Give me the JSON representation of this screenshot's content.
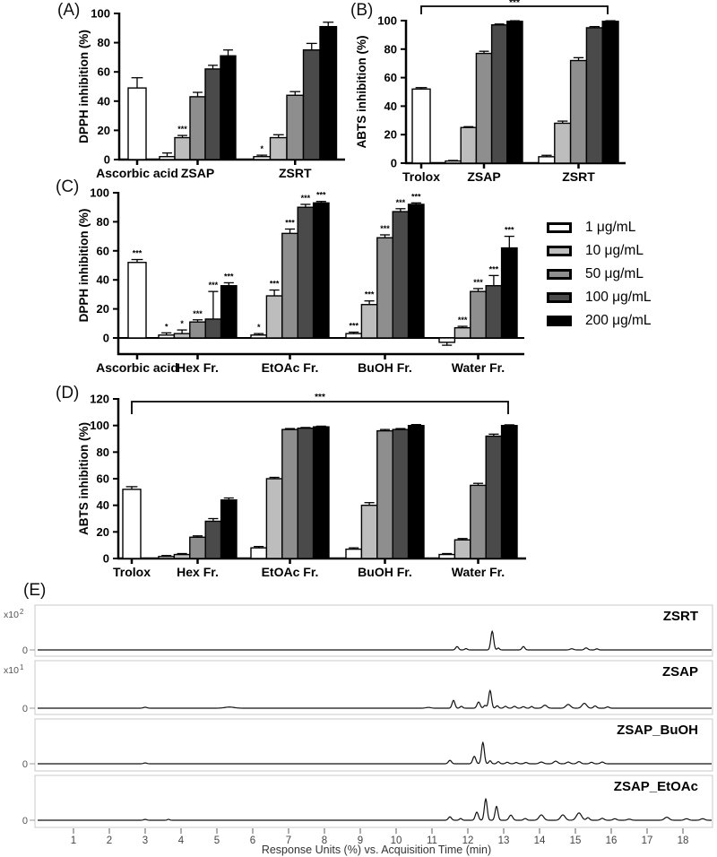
{
  "figure": {
    "background": "#ffffff"
  },
  "legend": {
    "items": [
      {
        "label": "1 μg/mL",
        "color": "#ffffff"
      },
      {
        "label": "10 μg/mL",
        "color": "#bdbdbd"
      },
      {
        "label": "50 μg/mL",
        "color": "#8e8e8e"
      },
      {
        "label": "100 μg/mL",
        "color": "#4a4a4a"
      },
      {
        "label": "200 μg/mL",
        "color": "#000000"
      }
    ]
  },
  "chart_data": [
    {
      "id": "A",
      "type": "bar",
      "panel_label": "(A)",
      "ylabel": "DPPH inhibition (%)",
      "ylim": [
        0,
        100
      ],
      "ytick_step": 20,
      "series_labels": [
        "1 μg/mL",
        "10 μg/mL",
        "50 μg/mL",
        "100 μg/mL",
        "200 μg/mL"
      ],
      "groups": [
        {
          "category": "Ascorbic acid",
          "values": [
            49
          ],
          "errors": [
            7
          ],
          "sig": [
            ""
          ]
        },
        {
          "category": "ZSAP",
          "values": [
            2,
            15,
            43,
            62,
            71
          ],
          "errors": [
            2.5,
            1.5,
            3,
            2.5,
            4
          ],
          "sig": [
            "",
            "***",
            "",
            "",
            ""
          ]
        },
        {
          "category": "ZSRT",
          "values": [
            2,
            15,
            44,
            75,
            91
          ],
          "errors": [
            1,
            2,
            2.5,
            4.5,
            3
          ],
          "sig": [
            "*",
            "",
            "",
            "",
            ""
          ]
        }
      ],
      "bracket": null
    },
    {
      "id": "B",
      "type": "bar",
      "panel_label": "(B)",
      "ylabel": "ABTS inhibition (%)",
      "ylim": [
        0,
        100
      ],
      "ytick_step": 20,
      "series_labels": [
        "1 μg/mL",
        "10 μg/mL",
        "50 μg/mL",
        "100 μg/mL",
        "200 μg/mL"
      ],
      "groups": [
        {
          "category": "Trolox",
          "values": [
            52
          ],
          "errors": [
            1
          ],
          "sig": [
            ""
          ]
        },
        {
          "category": "ZSAP",
          "values": [
            1.5,
            25,
            77,
            97,
            99.5
          ],
          "errors": [
            0.4,
            0.6,
            1.5,
            0.6,
            0.4
          ],
          "sig": [
            "",
            "",
            "",
            "",
            ""
          ]
        },
        {
          "category": "ZSRT",
          "values": [
            4.5,
            28,
            72,
            95,
            99.5
          ],
          "errors": [
            1,
            1.5,
            2,
            0.8,
            0.4
          ],
          "sig": [
            "",
            "",
            "",
            "",
            ""
          ]
        }
      ],
      "bracket": {
        "label": "***"
      }
    },
    {
      "id": "C",
      "type": "bar",
      "panel_label": "(C)",
      "ylabel": "DPPH inhibition (%)",
      "ylim": [
        0,
        100
      ],
      "ytick_step": 20,
      "series_labels": [
        "1 μg/mL",
        "10 μg/mL",
        "50 μg/mL",
        "100 μg/mL",
        "200 μg/mL"
      ],
      "groups": [
        {
          "category": "Ascorbic acid",
          "values": [
            52
          ],
          "errors": [
            2
          ],
          "sig": [
            "***"
          ]
        },
        {
          "category": "Hex Fr.",
          "values": [
            2,
            3,
            11,
            13,
            36
          ],
          "errors": [
            1.5,
            2.5,
            1.5,
            19,
            2
          ],
          "sig": [
            "*",
            "*",
            "***",
            "***",
            "***"
          ]
        },
        {
          "category": "EtOAc Fr.",
          "values": [
            2,
            29,
            72,
            90,
            93
          ],
          "errors": [
            1,
            4,
            3,
            2,
            1
          ],
          "sig": [
            "*",
            "***",
            "***",
            "***",
            "***"
          ]
        },
        {
          "category": "BuOH Fr.",
          "values": [
            3,
            23,
            69,
            87,
            92
          ],
          "errors": [
            1,
            2.5,
            2,
            2,
            1
          ],
          "sig": [
            "***",
            "***",
            "***",
            "***",
            "***"
          ]
        },
        {
          "category": "Water Fr.",
          "values": [
            -3,
            7,
            32,
            36,
            62
          ],
          "errors": [
            2,
            1,
            2,
            7,
            8
          ],
          "sig": [
            "",
            "***",
            "***",
            "***",
            "***"
          ]
        }
      ],
      "bracket": null
    },
    {
      "id": "D",
      "type": "bar",
      "panel_label": "(D)",
      "ylabel": "ABTS inhibition (%)",
      "ylim": [
        0,
        120
      ],
      "ytick_step": 20,
      "series_labels": [
        "1 μg/mL",
        "10 μg/mL",
        "50 μg/mL",
        "100 μg/mL",
        "200 μg/mL"
      ],
      "groups": [
        {
          "category": "Trolox",
          "values": [
            52
          ],
          "errors": [
            2
          ],
          "sig": [
            ""
          ]
        },
        {
          "category": "Hex Fr.",
          "values": [
            1.5,
            3,
            16,
            28,
            44
          ],
          "errors": [
            0.7,
            0.7,
            1,
            2,
            1.5
          ],
          "sig": [
            "",
            "",
            "",
            "",
            ""
          ]
        },
        {
          "category": "EtOAc Fr.",
          "values": [
            8,
            60,
            97,
            98,
            99
          ],
          "errors": [
            1,
            1,
            0.7,
            0.5,
            0.5
          ],
          "sig": [
            "",
            "",
            "",
            "",
            ""
          ]
        },
        {
          "category": "BuOH Fr.",
          "values": [
            7,
            40,
            96,
            97,
            100
          ],
          "errors": [
            1,
            2,
            1,
            0.7,
            0.7
          ],
          "sig": [
            "",
            "",
            "",
            "",
            ""
          ]
        },
        {
          "category": "Water Fr.",
          "values": [
            3,
            14,
            55,
            92,
            100
          ],
          "errors": [
            0.7,
            1,
            1.5,
            1.5,
            0.5
          ],
          "sig": [
            "",
            "",
            "",
            "",
            ""
          ]
        }
      ],
      "bracket": {
        "label": "***"
      }
    },
    {
      "id": "E",
      "type": "line",
      "panel_label": "(E)",
      "xlabel": "Response Units (%) vs. Acquisition Time (min)",
      "x_ticks": [
        1,
        2,
        3,
        4,
        5,
        6,
        7,
        8,
        9,
        10,
        11,
        12,
        13,
        14,
        15,
        16,
        17,
        18
      ],
      "x_range": [
        0,
        18.8
      ],
      "traces": [
        {
          "name": "ZSRT",
          "scale_label": "x10 2",
          "baseline_label": "0",
          "peaks": [
            [
              11.7,
              0.18,
              0.055
            ],
            [
              11.95,
              0.07,
              0.05
            ],
            [
              12.68,
              1.0,
              0.055
            ],
            [
              12.85,
              0.1,
              0.045
            ],
            [
              13.55,
              0.18,
              0.055
            ],
            [
              14.9,
              0.06,
              0.07
            ],
            [
              15.3,
              0.11,
              0.06
            ],
            [
              15.6,
              0.06,
              0.05
            ]
          ]
        },
        {
          "name": "ZSAP",
          "scale_label": "x10 1",
          "baseline_label": "0",
          "peaks": [
            [
              3.0,
              0.05,
              0.07
            ],
            [
              5.35,
              0.06,
              0.18
            ],
            [
              10.9,
              0.04,
              0.1
            ],
            [
              11.6,
              0.42,
              0.055
            ],
            [
              11.82,
              0.1,
              0.05
            ],
            [
              12.3,
              0.33,
              0.06
            ],
            [
              12.48,
              0.15,
              0.05
            ],
            [
              12.62,
              0.95,
              0.055
            ],
            [
              12.82,
              0.13,
              0.05
            ],
            [
              13.05,
              0.1,
              0.06
            ],
            [
              13.3,
              0.1,
              0.06
            ],
            [
              13.55,
              0.08,
              0.06
            ],
            [
              13.78,
              0.09,
              0.05
            ],
            [
              14.15,
              0.16,
              0.08
            ],
            [
              14.8,
              0.2,
              0.09
            ],
            [
              15.25,
              0.26,
              0.09
            ],
            [
              15.55,
              0.12,
              0.06
            ],
            [
              15.9,
              0.07,
              0.06
            ]
          ]
        },
        {
          "name": "ZSAP_BuOH",
          "scale_label": "",
          "baseline_label": "0",
          "peaks": [
            [
              3.0,
              0.04,
              0.06
            ],
            [
              11.5,
              0.16,
              0.06
            ],
            [
              12.18,
              0.35,
              0.06
            ],
            [
              12.42,
              1.0,
              0.055
            ],
            [
              12.62,
              0.14,
              0.05
            ],
            [
              12.85,
              0.1,
              0.05
            ],
            [
              13.1,
              0.07,
              0.06
            ],
            [
              13.35,
              0.06,
              0.06
            ],
            [
              13.62,
              0.06,
              0.06
            ],
            [
              14.05,
              0.08,
              0.08
            ],
            [
              14.45,
              0.12,
              0.08
            ],
            [
              14.8,
              0.08,
              0.07
            ],
            [
              15.1,
              0.1,
              0.07
            ],
            [
              15.45,
              0.07,
              0.06
            ],
            [
              15.75,
              0.08,
              0.07
            ]
          ]
        },
        {
          "name": "ZSAP_EtOAc",
          "scale_label": "",
          "baseline_label": "0",
          "peaks": [
            [
              3.0,
              0.04,
              0.06
            ],
            [
              3.65,
              0.04,
              0.05
            ],
            [
              11.5,
              0.16,
              0.06
            ],
            [
              11.8,
              0.08,
              0.05
            ],
            [
              12.25,
              0.38,
              0.06
            ],
            [
              12.5,
              1.0,
              0.055
            ],
            [
              12.8,
              0.65,
              0.055
            ],
            [
              13.2,
              0.24,
              0.07
            ],
            [
              13.6,
              0.08,
              0.06
            ],
            [
              14.05,
              0.25,
              0.09
            ],
            [
              14.65,
              0.25,
              0.09
            ],
            [
              15.1,
              0.34,
              0.1
            ],
            [
              15.35,
              0.12,
              0.06
            ],
            [
              15.75,
              0.09,
              0.07
            ],
            [
              16.1,
              0.07,
              0.07
            ],
            [
              16.5,
              0.05,
              0.08
            ],
            [
              17.55,
              0.14,
              0.09
            ],
            [
              18.1,
              0.07,
              0.08
            ],
            [
              18.55,
              0.07,
              0.08
            ]
          ]
        }
      ]
    }
  ]
}
